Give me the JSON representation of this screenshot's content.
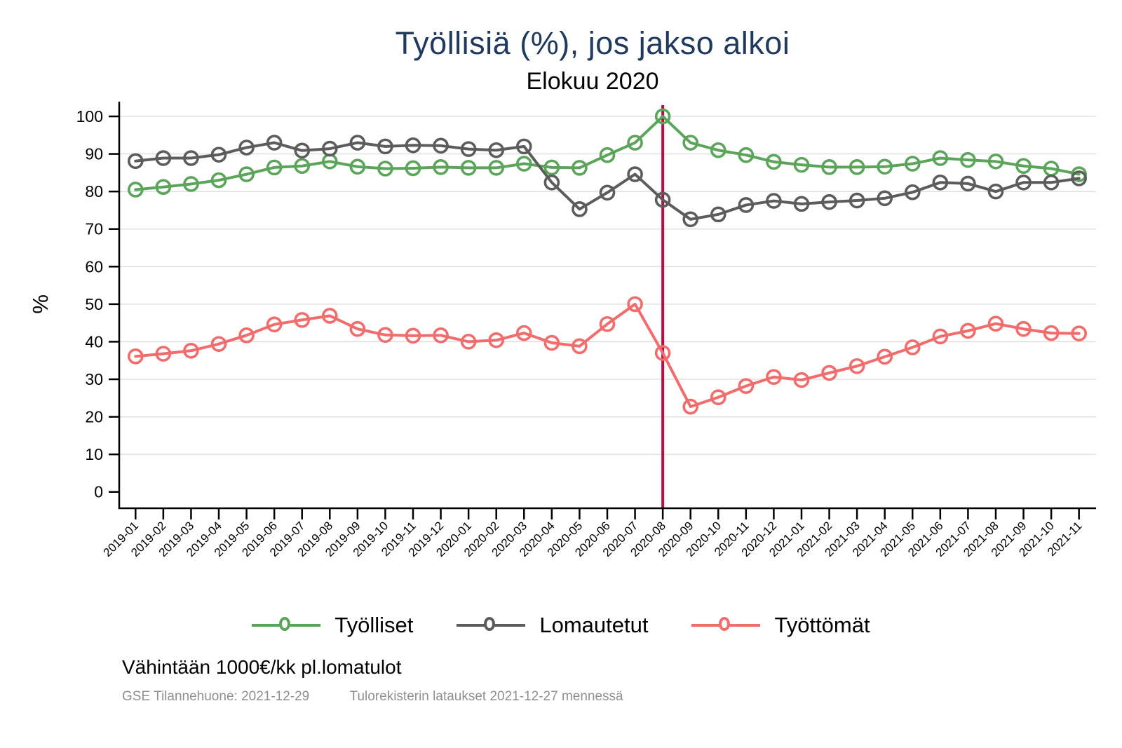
{
  "title": "Työllisiä (%), jos jakso alkoi",
  "subtitle": "Elokuu 2020",
  "footer": {
    "note": "Vähintään 1000€/kk pl.lomatulot",
    "source_left": "GSE Tilannehuone: 2021-12-29",
    "source_right": "Tulorekisterin lataukset 2021-12-27 mennessä"
  },
  "colors": {
    "title": "#20395e",
    "grid": "#dcdcdc",
    "axis": "#000000",
    "vline": "#b80f3e",
    "footer_small": "#8f8f8f"
  },
  "chart_data": {
    "type": "line",
    "title": "Työllisiä (%), jos jakso alkoi",
    "subtitle": "Elokuu 2020",
    "xlabel": "",
    "ylabel": "%",
    "ylim": [
      0,
      100
    ],
    "ytick_step": 10,
    "grid": true,
    "legend_position": "bottom",
    "marker": "circle-open",
    "categories": [
      "2019-01",
      "2019-02",
      "2019-03",
      "2019-04",
      "2019-05",
      "2019-06",
      "2019-07",
      "2019-08",
      "2019-09",
      "2019-10",
      "2019-11",
      "2019-12",
      "2020-01",
      "2020-02",
      "2020-03",
      "2020-04",
      "2020-05",
      "2020-06",
      "2020-07",
      "2020-08",
      "2020-09",
      "2020-10",
      "2020-11",
      "2020-12",
      "2021-01",
      "2021-02",
      "2021-03",
      "2021-04",
      "2021-05",
      "2021-06",
      "2021-07",
      "2021-08",
      "2021-09",
      "2021-10",
      "2021-11"
    ],
    "series": [
      {
        "name": "Työlliset",
        "color": "#5ba55b",
        "values": [
          80.5,
          81.2,
          82.0,
          83.0,
          84.6,
          86.4,
          86.8,
          88.0,
          86.6,
          86.1,
          86.2,
          86.5,
          86.3,
          86.3,
          87.4,
          86.4,
          86.3,
          89.7,
          93.0,
          100.0,
          93.0,
          91.0,
          89.7,
          87.9,
          87.1,
          86.5,
          86.5,
          86.6,
          87.4,
          88.9,
          88.4,
          88.0,
          86.8,
          86.1,
          84.6
        ]
      },
      {
        "name": "Lomautetut",
        "color": "#5c5c5c",
        "values": [
          88.1,
          88.9,
          88.9,
          89.8,
          91.7,
          93.0,
          90.9,
          91.4,
          93.0,
          92.0,
          92.3,
          92.2,
          91.3,
          91.0,
          92.0,
          82.4,
          75.3,
          79.7,
          84.6,
          77.8,
          72.6,
          73.9,
          76.4,
          77.5,
          76.7,
          77.2,
          77.6,
          78.2,
          79.8,
          82.4,
          82.1,
          80.0,
          82.4,
          82.4,
          83.5
        ]
      },
      {
        "name": "Työttömät",
        "color": "#f36c6c",
        "values": [
          36.1,
          36.8,
          37.6,
          39.4,
          41.7,
          44.6,
          45.8,
          46.9,
          43.4,
          41.8,
          41.6,
          41.7,
          40.0,
          40.4,
          42.3,
          39.7,
          38.8,
          44.7,
          50.0,
          37.0,
          22.7,
          25.2,
          28.2,
          30.6,
          29.8,
          31.7,
          33.5,
          36.0,
          38.5,
          41.4,
          42.9,
          44.8,
          43.4,
          42.3,
          42.2
        ]
      }
    ],
    "vline": {
      "at_category": "2020-08",
      "color": "#b80f3e"
    }
  }
}
